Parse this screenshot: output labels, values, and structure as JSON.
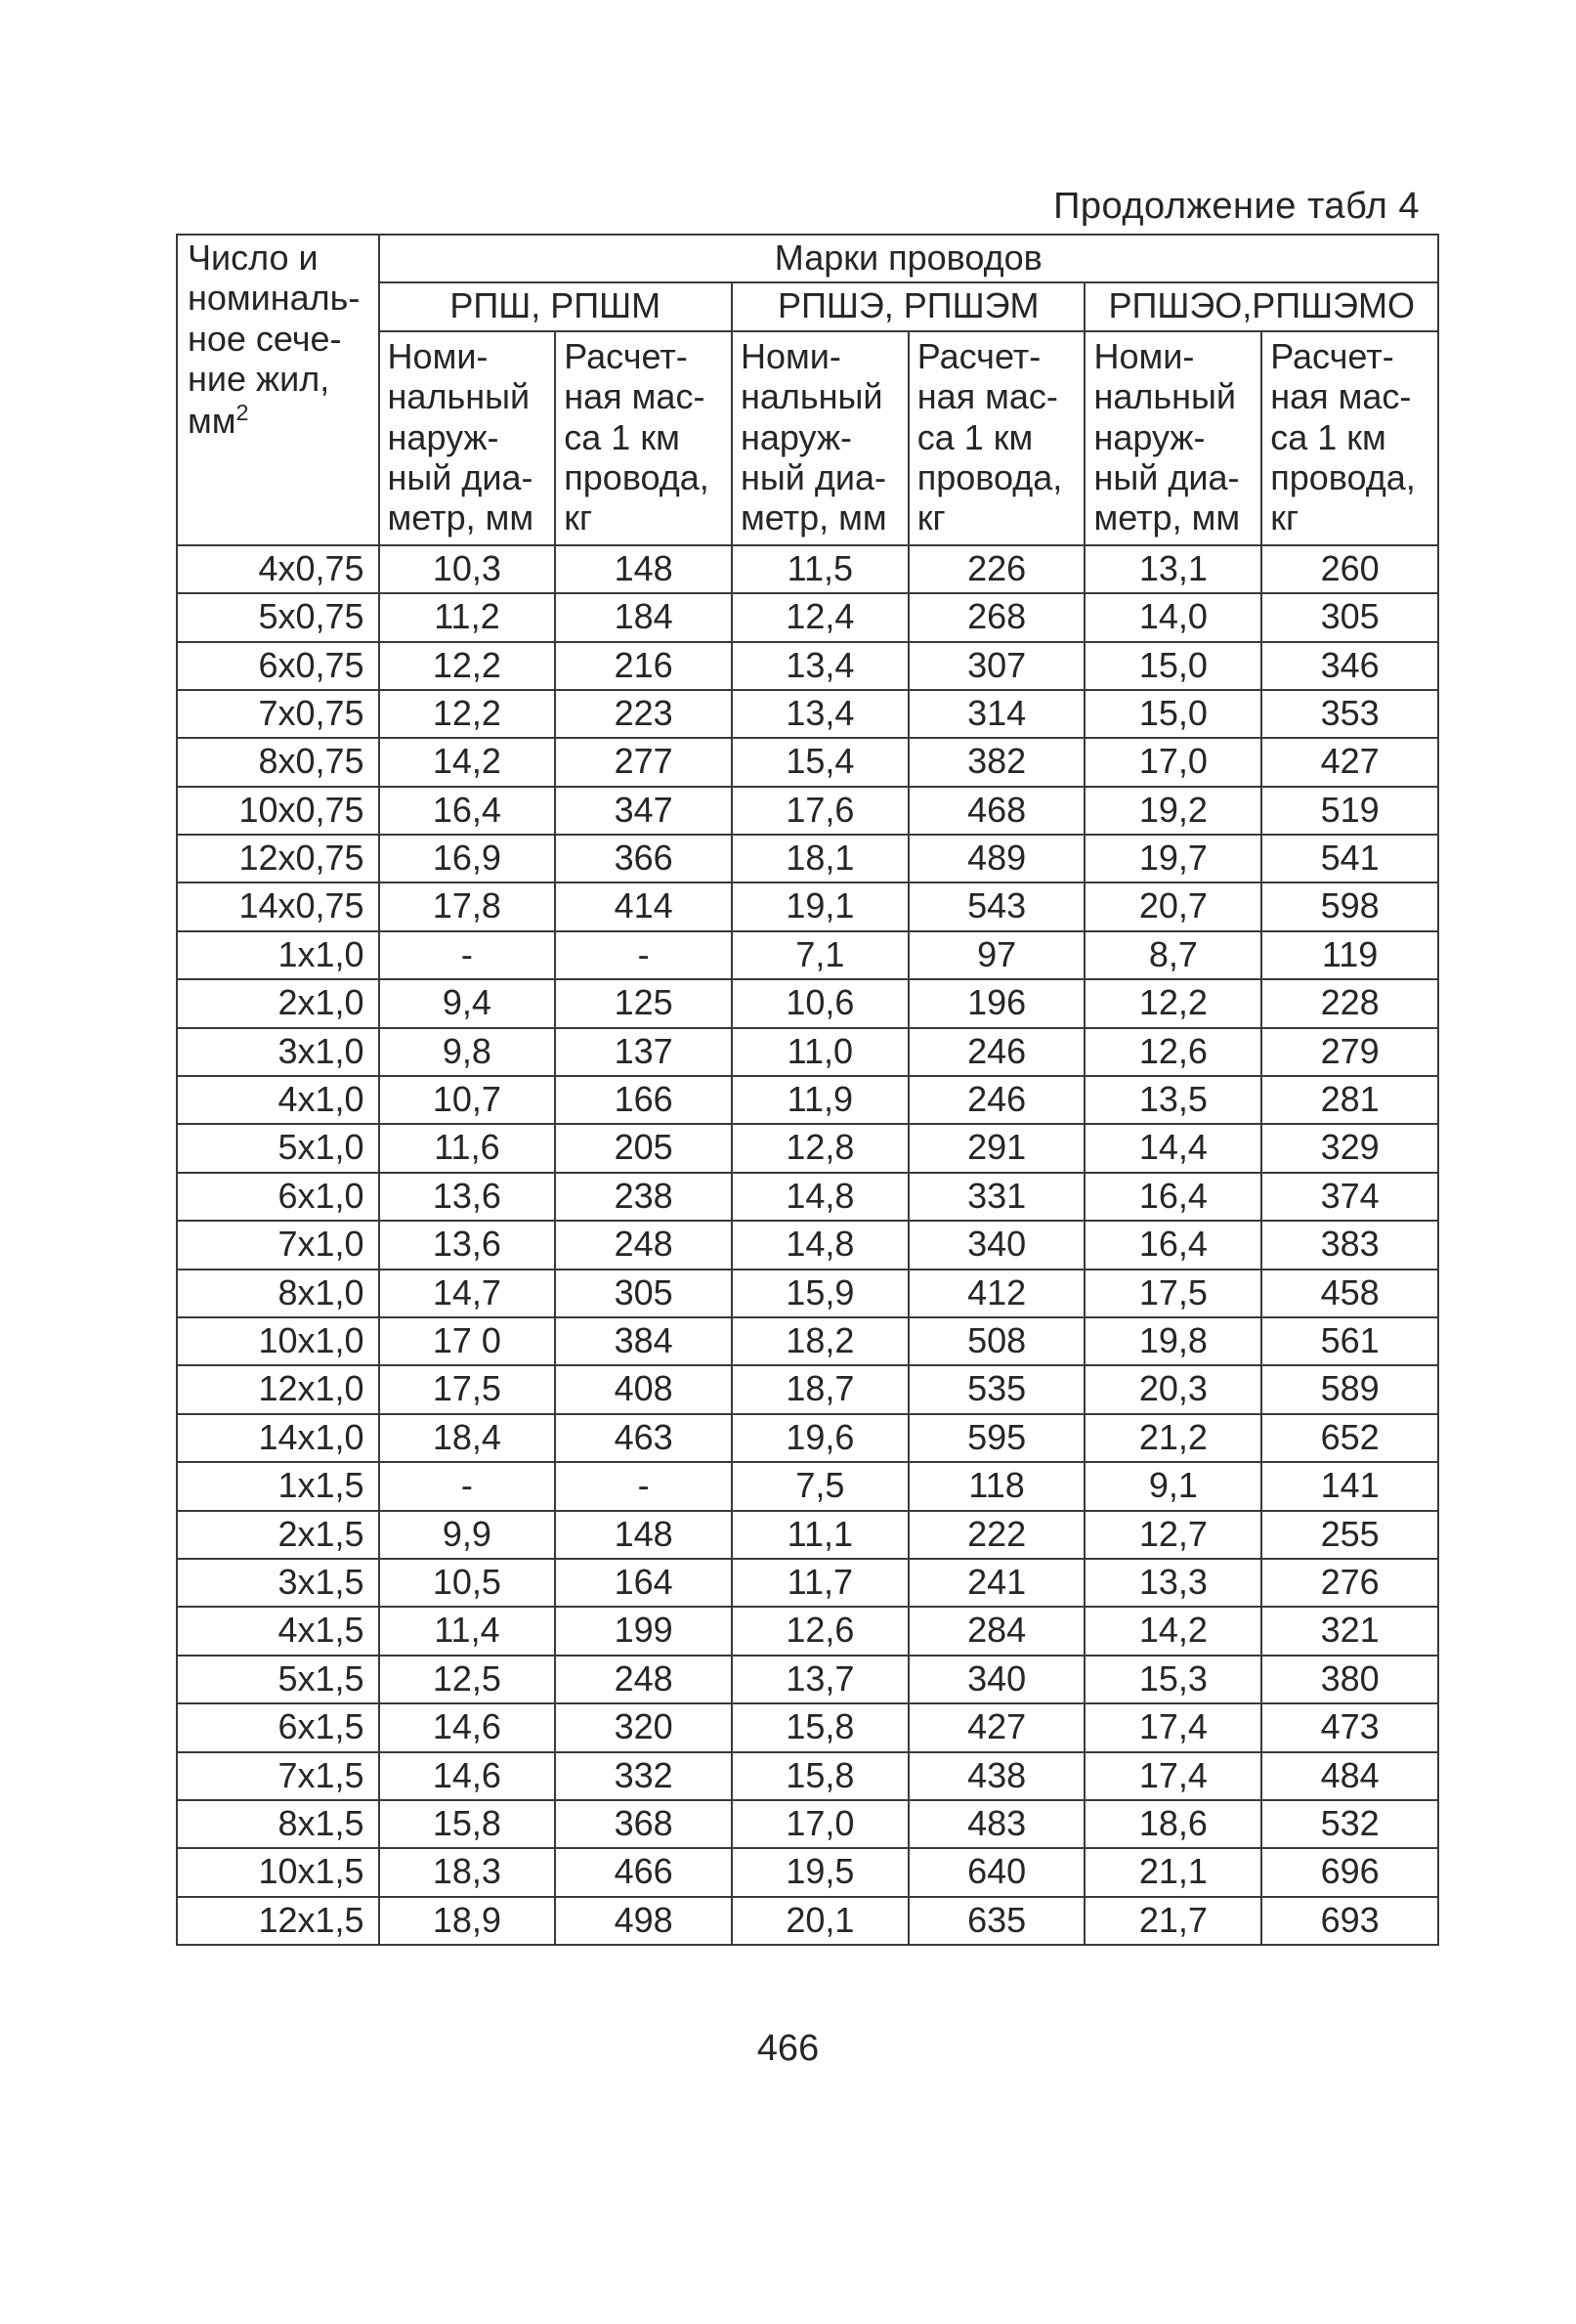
{
  "caption": "Продолжение табл 4",
  "page_number": "466",
  "headers": {
    "row_label": "Число и номиналь-ное сече-ние жил, мм",
    "row_label_sup": "2",
    "top_span": "Марки проводов",
    "pairs": [
      "РПШ, РПШМ",
      "РПШЭ, РПШЭМ",
      "РПШЭО,РПШЭМО"
    ],
    "sub_diameter": "Номи-нальный наруж-ный диа-метр, мм",
    "sub_mass": "Расчет-ная мас-са 1 км провода, кг"
  },
  "col_widths": [
    "16%",
    "14%",
    "14%",
    "14%",
    "14%",
    "14%",
    "14%"
  ],
  "rows": [
    {
      "label": "4х0,75",
      "c": [
        "10,3",
        "148",
        "11,5",
        "226",
        "13,1",
        "260"
      ]
    },
    {
      "label": "5х0,75",
      "c": [
        "11,2",
        "184",
        "12,4",
        "268",
        "14,0",
        "305"
      ]
    },
    {
      "label": "6х0,75",
      "c": [
        "12,2",
        "216",
        "13,4",
        "307",
        "15,0",
        "346"
      ]
    },
    {
      "label": "7х0,75",
      "c": [
        "12,2",
        "223",
        "13,4",
        "314",
        "15,0",
        "353"
      ]
    },
    {
      "label": "8х0,75",
      "c": [
        "14,2",
        "277",
        "15,4",
        "382",
        "17,0",
        "427"
      ]
    },
    {
      "label": "10х0,75",
      "c": [
        "16,4",
        "347",
        "17,6",
        "468",
        "19,2",
        "519"
      ]
    },
    {
      "label": "12х0,75",
      "c": [
        "16,9",
        "366",
        "18,1",
        "489",
        "19,7",
        "541"
      ]
    },
    {
      "label": "14х0,75",
      "c": [
        "17,8",
        "414",
        "19,1",
        "543",
        "20,7",
        "598"
      ]
    },
    {
      "label": "1х1,0",
      "c": [
        "-",
        "-",
        "7,1",
        "97",
        "8,7",
        "119"
      ]
    },
    {
      "label": "2х1,0",
      "c": [
        "9,4",
        "125",
        "10,6",
        "196",
        "12,2",
        "228"
      ]
    },
    {
      "label": "3х1,0",
      "c": [
        "9,8",
        "137",
        "11,0",
        "246",
        "12,6",
        "279"
      ]
    },
    {
      "label": "4х1,0",
      "c": [
        "10,7",
        "166",
        "11,9",
        "246",
        "13,5",
        "281"
      ]
    },
    {
      "label": "5х1,0",
      "c": [
        "11,6",
        "205",
        "12,8",
        "291",
        "14,4",
        "329"
      ]
    },
    {
      "label": "6х1,0",
      "c": [
        "13,6",
        "238",
        "14,8",
        "331",
        "16,4",
        "374"
      ]
    },
    {
      "label": "7х1,0",
      "c": [
        "13,6",
        "248",
        "14,8",
        "340",
        "16,4",
        "383"
      ]
    },
    {
      "label": "8х1,0",
      "c": [
        "14,7",
        "305",
        "15,9",
        "412",
        "17,5",
        "458"
      ]
    },
    {
      "label": "10х1,0",
      "c": [
        "17 0",
        "384",
        "18,2",
        "508",
        "19,8",
        "561"
      ]
    },
    {
      "label": "12х1,0",
      "c": [
        "17,5",
        "408",
        "18,7",
        "535",
        "20,3",
        "589"
      ]
    },
    {
      "label": "14х1,0",
      "c": [
        "18,4",
        "463",
        "19,6",
        "595",
        "21,2",
        "652"
      ]
    },
    {
      "label": "1х1,5",
      "c": [
        "-",
        "-",
        "7,5",
        "118",
        "9,1",
        "141"
      ]
    },
    {
      "label": "2х1,5",
      "c": [
        "9,9",
        "148",
        "11,1",
        "222",
        "12,7",
        "255"
      ]
    },
    {
      "label": "3х1,5",
      "c": [
        "10,5",
        "164",
        "11,7",
        "241",
        "13,3",
        "276"
      ]
    },
    {
      "label": "4х1,5",
      "c": [
        "11,4",
        "199",
        "12,6",
        "284",
        "14,2",
        "321"
      ]
    },
    {
      "label": "5х1,5",
      "c": [
        "12,5",
        "248",
        "13,7",
        "340",
        "15,3",
        "380"
      ]
    },
    {
      "label": "6х1,5",
      "c": [
        "14,6",
        "320",
        "15,8",
        "427",
        "17,4",
        "473"
      ]
    },
    {
      "label": "7х1,5",
      "c": [
        "14,6",
        "332",
        "15,8",
        "438",
        "17,4",
        "484"
      ]
    },
    {
      "label": "8х1,5",
      "c": [
        "15,8",
        "368",
        "17,0",
        "483",
        "18,6",
        "532"
      ]
    },
    {
      "label": "10х1,5",
      "c": [
        "18,3",
        "466",
        "19,5",
        "640",
        "21,1",
        "696"
      ]
    },
    {
      "label": "12х1,5",
      "c": [
        "18,9",
        "498",
        "20,1",
        "635",
        "21,7",
        "693"
      ]
    }
  ]
}
